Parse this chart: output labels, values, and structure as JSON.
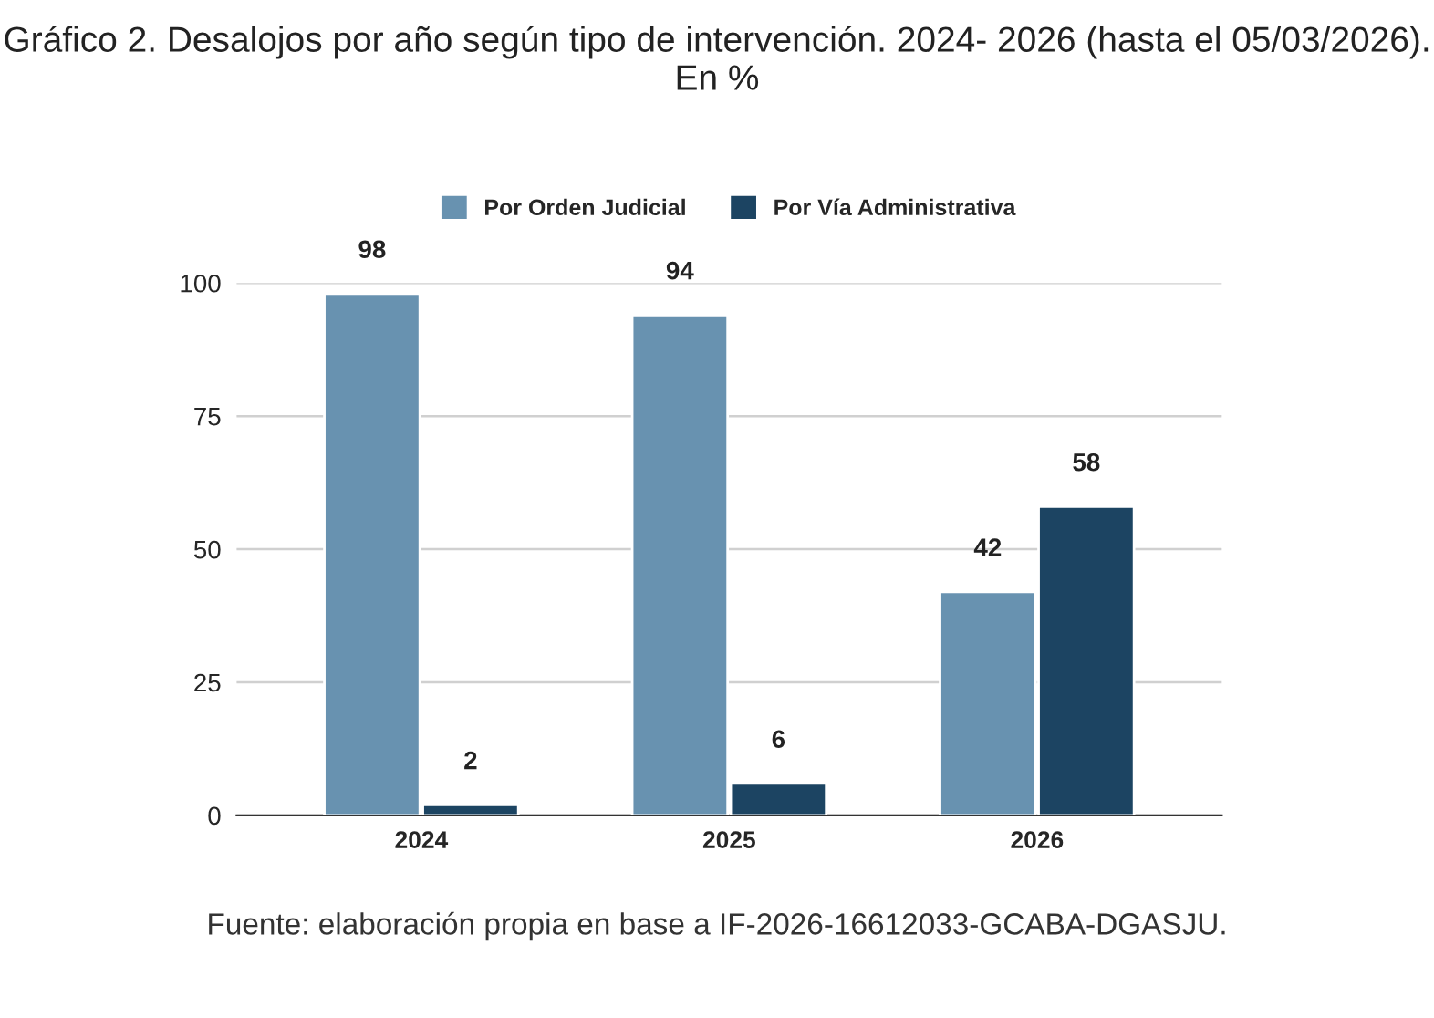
{
  "chart_data": {
    "type": "bar",
    "title": "Gráfico 2. Desalojos por año según tipo de intervención. 2024- 2026 (hasta el 05/03/2026). En %",
    "categories": [
      "2024",
      "2025",
      "2026"
    ],
    "series": [
      {
        "name": "Por Orden Judicial",
        "color": "#6892b0",
        "values": [
          98,
          94,
          42
        ]
      },
      {
        "name": "Por Vía Administrativa",
        "color": "#1c4462",
        "values": [
          2,
          6,
          58
        ]
      }
    ],
    "ylim": [
      0,
      100
    ],
    "yticks": [
      0,
      25,
      50,
      75,
      100
    ],
    "grid": "y",
    "legend": "top",
    "data_labels": true,
    "annotations": [
      "Fuente: elaboración propia en base a IF-2026-16612033-GCABA-DGASJU."
    ]
  }
}
